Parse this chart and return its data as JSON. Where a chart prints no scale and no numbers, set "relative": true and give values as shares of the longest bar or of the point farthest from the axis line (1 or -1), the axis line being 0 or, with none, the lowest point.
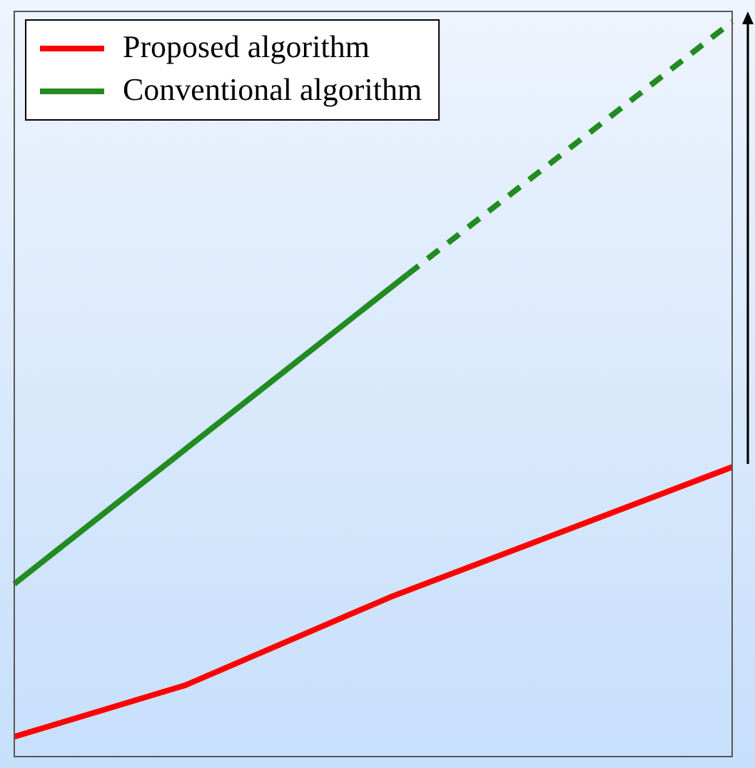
{
  "chart_data": {
    "type": "line",
    "relative": true,
    "legend": "top left",
    "categories": [
      null,
      null,
      null,
      null,
      null,
      null,
      null,
      null,
      null,
      null,
      null,
      null,
      null,
      null,
      null,
      null,
      null,
      null,
      null,
      null,
      null,
      null,
      null,
      null,
      null,
      null,
      null,
      null,
      null,
      null,
      null,
      null,
      null,
      null,
      null,
      null,
      null,
      null,
      null,
      null,
      null,
      null,
      null
    ],
    "series": [
      {
        "name": "Proposed algorithm",
        "color": "#ff0000",
        "line_style": "solid",
        "values": [
          0.027,
          null,
          null,
          null,
          null,
          null,
          null,
          null,
          null,
          null,
          0.097,
          null,
          null,
          null,
          null,
          null,
          null,
          null,
          null,
          null,
          null,
          null,
          0.217,
          null,
          null,
          null,
          null,
          null,
          null,
          null,
          null,
          null,
          null,
          null,
          null,
          null,
          null,
          null,
          null,
          null,
          null,
          null,
          0.394
        ]
      },
      {
        "name": "Conventional algorithm",
        "color": "#228b22",
        "line_style": "solid",
        "values": [
          0.235,
          null,
          null,
          null,
          null,
          null,
          null,
          null,
          null,
          null,
          null,
          null,
          null,
          null,
          null,
          null,
          null,
          null,
          null,
          null,
          null,
          null,
          null,
          0.656,
          null,
          null,
          null,
          null,
          null,
          null,
          null,
          null,
          null,
          null,
          null,
          null,
          null,
          null,
          null,
          null,
          null,
          null,
          null
        ]
      },
      {
        "color": "#228b22",
        "line_style": "dashed",
        "values": [
          null,
          null,
          null,
          null,
          null,
          null,
          null,
          null,
          null,
          null,
          null,
          null,
          null,
          null,
          null,
          null,
          null,
          null,
          null,
          null,
          null,
          null,
          null,
          0.656,
          null,
          null,
          null,
          null,
          null,
          null,
          null,
          null,
          null,
          null,
          null,
          null,
          null,
          null,
          null,
          null,
          null,
          null,
          1.0
        ]
      }
    ]
  }
}
